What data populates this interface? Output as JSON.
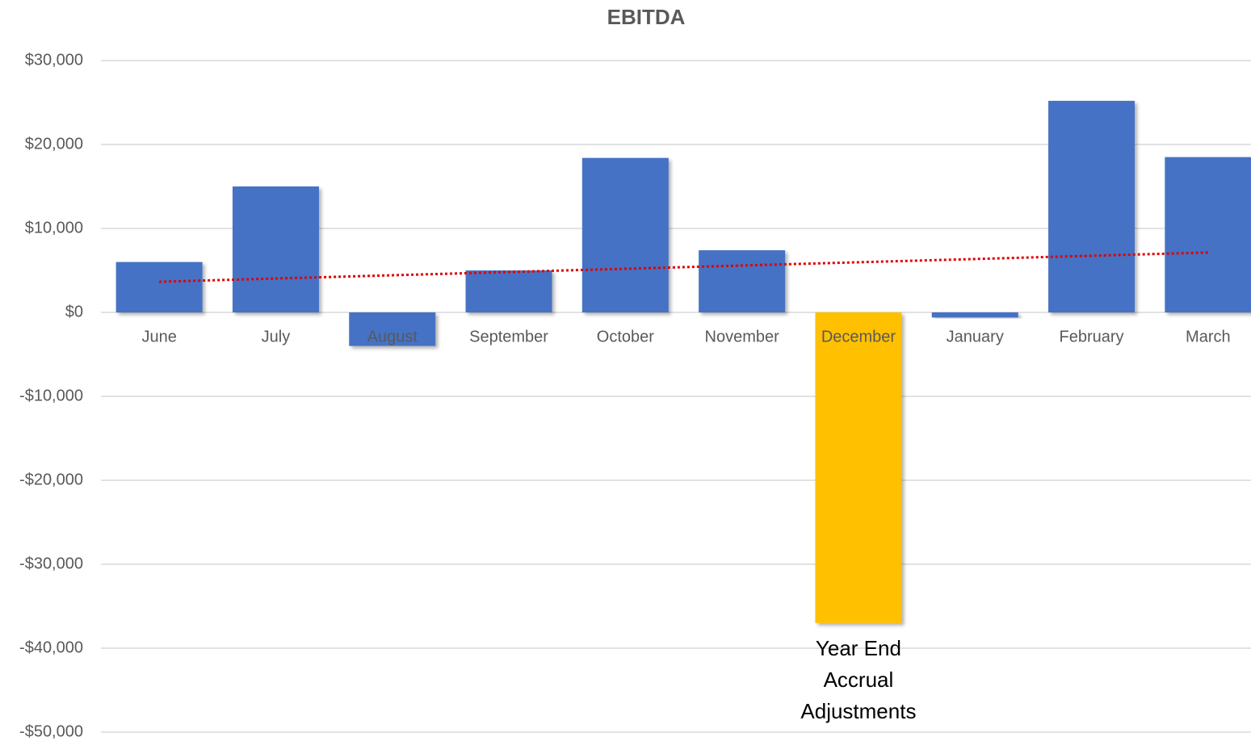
{
  "chart_data": {
    "type": "bar",
    "title": "EBITDA",
    "categories": [
      "June",
      "July",
      "August",
      "September",
      "October",
      "November",
      "December",
      "January",
      "February",
      "March"
    ],
    "values": [
      6000,
      15000,
      -4000,
      5000,
      18400,
      7400,
      -37000,
      -600,
      25200,
      18500
    ],
    "colors": [
      "#4472c4",
      "#4472c4",
      "#4472c4",
      "#4472c4",
      "#4472c4",
      "#4472c4",
      "#ffc000",
      "#4472c4",
      "#4472c4",
      "#4472c4"
    ],
    "ylim": [
      -50000,
      30000
    ],
    "yticks": [
      {
        "value": -50000,
        "label": "-$50,000"
      },
      {
        "value": -40000,
        "label": "-$40,000"
      },
      {
        "value": -30000,
        "label": "-$30,000"
      },
      {
        "value": -20000,
        "label": "-$20,000"
      },
      {
        "value": -10000,
        "label": "-$10,000"
      },
      {
        "value": 0,
        "label": "$0"
      },
      {
        "value": 10000,
        "label": "$10,000"
      },
      {
        "value": 20000,
        "label": "$20,000"
      },
      {
        "value": 30000,
        "label": "$30,000"
      }
    ],
    "grid": true,
    "trendline": {
      "type": "linear",
      "color": "#e00000"
    },
    "annotation": {
      "text": "Year End Accrual Adjustments",
      "category": 6
    }
  }
}
